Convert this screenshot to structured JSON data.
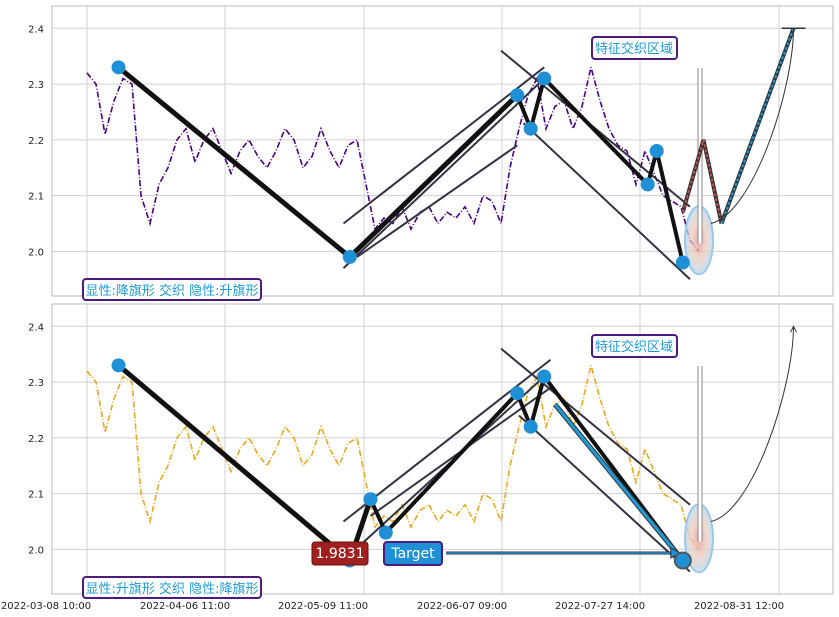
{
  "chart_data": [
    {
      "type": "line",
      "ylim": [
        1.92,
        2.44
      ],
      "y_ticks": [
        "2.0",
        "2.1",
        "2.2",
        "2.3",
        "2.4"
      ],
      "grid": true,
      "colors": {
        "price": "#4b0082",
        "pattern": "#111111",
        "channel": "#333344",
        "marker": "#1f8fd6",
        "projection_down": "#c0504d",
        "projection_up": "#1f9ad6",
        "label_border": "#4b1c7a",
        "label_text": "#1f9ad6"
      },
      "price_series": [
        [
          0,
          2.32
        ],
        [
          1,
          2.3
        ],
        [
          2,
          2.21
        ],
        [
          3,
          2.27
        ],
        [
          4,
          2.31
        ],
        [
          5,
          2.3
        ],
        [
          6,
          2.1
        ],
        [
          7,
          2.05
        ],
        [
          8,
          2.12
        ],
        [
          9,
          2.15
        ],
        [
          10,
          2.2
        ],
        [
          11,
          2.22
        ],
        [
          12,
          2.16
        ],
        [
          13,
          2.2
        ],
        [
          14,
          2.22
        ],
        [
          15,
          2.18
        ],
        [
          16,
          2.14
        ],
        [
          17,
          2.18
        ],
        [
          18,
          2.2
        ],
        [
          19,
          2.17
        ],
        [
          20,
          2.15
        ],
        [
          21,
          2.18
        ],
        [
          22,
          2.22
        ],
        [
          23,
          2.2
        ],
        [
          24,
          2.15
        ],
        [
          25,
          2.17
        ],
        [
          26,
          2.22
        ],
        [
          27,
          2.18
        ],
        [
          28,
          2.15
        ],
        [
          29,
          2.19
        ],
        [
          30,
          2.2
        ],
        [
          31,
          2.12
        ],
        [
          32,
          2.04
        ],
        [
          33,
          2.06
        ],
        [
          34,
          2.05
        ],
        [
          35,
          2.08
        ],
        [
          36,
          2.04
        ],
        [
          37,
          2.07
        ],
        [
          38,
          2.08
        ],
        [
          39,
          2.05
        ],
        [
          40,
          2.07
        ],
        [
          41,
          2.06
        ],
        [
          42,
          2.08
        ],
        [
          43,
          2.05
        ],
        [
          44,
          2.1
        ],
        [
          45,
          2.09
        ],
        [
          46,
          2.05
        ],
        [
          47,
          2.15
        ],
        [
          48,
          2.22
        ],
        [
          49,
          2.28
        ],
        [
          50,
          2.31
        ],
        [
          51,
          2.22
        ],
        [
          52,
          2.26
        ],
        [
          53,
          2.27
        ],
        [
          54,
          2.22
        ],
        [
          55,
          2.26
        ],
        [
          56,
          2.33
        ],
        [
          57,
          2.27
        ],
        [
          58,
          2.22
        ],
        [
          59,
          2.19
        ],
        [
          60,
          2.18
        ],
        [
          61,
          2.12
        ],
        [
          62,
          2.18
        ],
        [
          63,
          2.14
        ],
        [
          64,
          2.1
        ],
        [
          65,
          2.09
        ],
        [
          66,
          2.08
        ],
        [
          67,
          2.02
        ],
        [
          68,
          2.0
        ]
      ],
      "pattern_points": [
        [
          3.5,
          2.33
        ],
        [
          29.2,
          1.99
        ],
        [
          47.8,
          2.28
        ],
        [
          49.3,
          2.22
        ],
        [
          50.8,
          2.31
        ],
        [
          62.3,
          2.12
        ],
        [
          63.3,
          2.18
        ],
        [
          66.2,
          1.98
        ]
      ],
      "channel_lines": [
        [
          [
            28.5,
            1.97
          ],
          [
            50.8,
            2.31
          ]
        ],
        [
          [
            28.5,
            2.05
          ],
          [
            50.8,
            2.33
          ]
        ],
        [
          [
            30,
            1.99
          ],
          [
            47.8,
            2.19
          ]
        ],
        [
          [
            46,
            2.36
          ],
          [
            67,
            2.08
          ]
        ],
        [
          [
            48.5,
            2.23
          ],
          [
            67,
            1.95
          ]
        ]
      ],
      "projection_down": [
        [
          66.2,
          2.07
        ],
        [
          68.5,
          2.2
        ],
        [
          70.5,
          2.05
        ]
      ],
      "projection_up": [
        [
          70.5,
          2.05
        ],
        [
          78.5,
          2.4
        ]
      ],
      "target_marker": {
        "x": 78.5,
        "y": 2.4
      },
      "annotations": [
        "特征交织区域",
        "显性:降旗形 交织 隐性:升旗形"
      ]
    },
    {
      "type": "line",
      "ylim": [
        1.92,
        2.44
      ],
      "y_ticks": [
        "2.0",
        "2.1",
        "2.2",
        "2.3",
        "2.4"
      ],
      "grid": true,
      "colors": {
        "price": "#e8a820",
        "pattern": "#111111",
        "channel": "#333344",
        "marker": "#1f8fd6",
        "projection_up": "#1f9ad6",
        "value_box": "#a02020",
        "target_box": "#1f8fd6"
      },
      "price_series": [
        [
          0,
          2.32
        ],
        [
          1,
          2.3
        ],
        [
          2,
          2.21
        ],
        [
          3,
          2.27
        ],
        [
          4,
          2.31
        ],
        [
          5,
          2.3
        ],
        [
          6,
          2.1
        ],
        [
          7,
          2.05
        ],
        [
          8,
          2.12
        ],
        [
          9,
          2.15
        ],
        [
          10,
          2.2
        ],
        [
          11,
          2.22
        ],
        [
          12,
          2.16
        ],
        [
          13,
          2.2
        ],
        [
          14,
          2.22
        ],
        [
          15,
          2.18
        ],
        [
          16,
          2.14
        ],
        [
          17,
          2.18
        ],
        [
          18,
          2.2
        ],
        [
          19,
          2.17
        ],
        [
          20,
          2.15
        ],
        [
          21,
          2.18
        ],
        [
          22,
          2.22
        ],
        [
          23,
          2.2
        ],
        [
          24,
          2.15
        ],
        [
          25,
          2.17
        ],
        [
          26,
          2.22
        ],
        [
          27,
          2.18
        ],
        [
          28,
          2.15
        ],
        [
          29,
          2.19
        ],
        [
          30,
          2.2
        ],
        [
          31,
          2.12
        ],
        [
          32,
          2.04
        ],
        [
          33,
          2.06
        ],
        [
          34,
          2.05
        ],
        [
          35,
          2.08
        ],
        [
          36,
          2.04
        ],
        [
          37,
          2.07
        ],
        [
          38,
          2.08
        ],
        [
          39,
          2.05
        ],
        [
          40,
          2.07
        ],
        [
          41,
          2.06
        ],
        [
          42,
          2.08
        ],
        [
          43,
          2.05
        ],
        [
          44,
          2.1
        ],
        [
          45,
          2.09
        ],
        [
          46,
          2.05
        ],
        [
          47,
          2.15
        ],
        [
          48,
          2.22
        ],
        [
          49,
          2.28
        ],
        [
          50,
          2.31
        ],
        [
          51,
          2.22
        ],
        [
          52,
          2.26
        ],
        [
          53,
          2.27
        ],
        [
          54,
          2.22
        ],
        [
          55,
          2.26
        ],
        [
          56,
          2.33
        ],
        [
          57,
          2.27
        ],
        [
          58,
          2.22
        ],
        [
          59,
          2.19
        ],
        [
          60,
          2.18
        ],
        [
          61,
          2.12
        ],
        [
          62,
          2.18
        ],
        [
          63,
          2.14
        ],
        [
          64,
          2.1
        ],
        [
          65,
          2.09
        ],
        [
          66,
          2.08
        ],
        [
          67,
          2.02
        ],
        [
          68,
          2.0
        ]
      ],
      "pattern_points": [
        [
          3.5,
          2.33
        ],
        [
          29.2,
          1.98
        ],
        [
          31.5,
          2.09
        ],
        [
          33.2,
          2.03
        ],
        [
          47.8,
          2.28
        ],
        [
          49.3,
          2.22
        ],
        [
          50.8,
          2.31
        ],
        [
          66.2,
          1.98
        ]
      ],
      "channel_lines": [
        [
          [
            28.5,
            2.05
          ],
          [
            51.5,
            2.34
          ]
        ],
        [
          [
            28.5,
            1.98
          ],
          [
            50.8,
            2.31
          ]
        ],
        [
          [
            31.5,
            2.06
          ],
          [
            51.5,
            2.29
          ]
        ],
        [
          [
            46,
            2.36
          ],
          [
            67,
            2.08
          ]
        ],
        [
          [
            48,
            2.24
          ],
          [
            67,
            1.96
          ]
        ]
      ],
      "projection_blue": [
        [
          52,
          2.26
        ],
        [
          66.2,
          1.98
        ]
      ],
      "target_marker": {
        "x": 66.2,
        "y": 1.98
      },
      "value_label": "1.9831",
      "target_label": "Target",
      "annotations": [
        "特征交织区域",
        "显性:升旗形 交织 隐性:降旗形"
      ]
    }
  ],
  "x_axis_labels": [
    "2022-03-08 10:00",
    "2022-04-06 11:00",
    "2022-05-09 11:00",
    "2022-06-07 09:00",
    "2022-07-27 14:00",
    "2022-08-31 12:00"
  ]
}
